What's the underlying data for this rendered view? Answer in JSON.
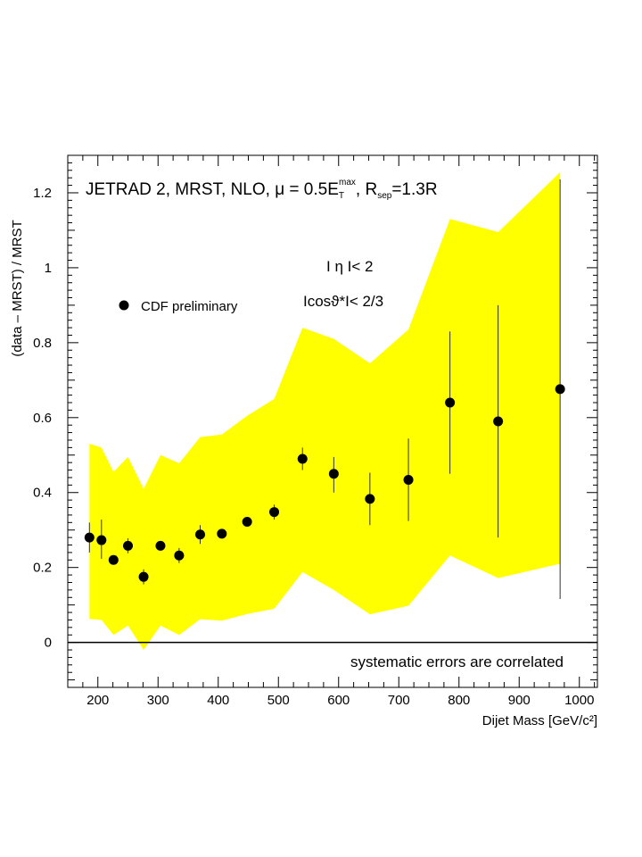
{
  "chart_data": {
    "type": "scatter",
    "title": "",
    "xlabel": "Dijet Mass [GeV/c²]",
    "ylabel": "(data – MRST) / MRST",
    "xlim": [
      150,
      1030
    ],
    "ylim": [
      -0.12,
      1.3
    ],
    "xticks": [
      200,
      300,
      400,
      500,
      600,
      700,
      800,
      900,
      1000
    ],
    "yticks": [
      0,
      0.2,
      0.4,
      0.6,
      0.8,
      1,
      1.2
    ],
    "ytick_labels": [
      "0",
      "0.2",
      "0.4",
      "0.6",
      "0.8",
      "1",
      "1.2"
    ],
    "grid": false,
    "zero_line": 0,
    "series": [
      {
        "name": "CDF preliminary",
        "x": [
          186,
          206,
          226,
          250,
          276,
          304,
          335,
          370,
          406,
          448,
          493,
          540,
          592,
          652,
          716,
          785,
          865,
          968
        ],
        "y": [
          0.28,
          0.273,
          0.22,
          0.258,
          0.175,
          0.258,
          0.232,
          0.288,
          0.29,
          0.322,
          0.348,
          0.49,
          0.45,
          0.383,
          0.434,
          0.64,
          0.59,
          0.676
        ],
        "err_low": [
          0.04,
          0.05,
          0.01,
          0.02,
          0.02,
          0.01,
          0.02,
          0.025,
          0.01,
          0.01,
          0.02,
          0.03,
          0.05,
          0.07,
          0.11,
          0.19,
          0.31,
          0.56
        ],
        "err_high": [
          0.04,
          0.055,
          0.01,
          0.02,
          0.02,
          0.01,
          0.02,
          0.025,
          0.01,
          0.01,
          0.02,
          0.03,
          0.045,
          0.07,
          0.11,
          0.19,
          0.31,
          0.56
        ]
      }
    ],
    "band": {
      "color": "#ffff00",
      "x": [
        186,
        206,
        226,
        250,
        276,
        304,
        335,
        370,
        406,
        448,
        493,
        540,
        592,
        652,
        716,
        785,
        865,
        968
      ],
      "upper": [
        0.53,
        0.52,
        0.455,
        0.495,
        0.41,
        0.5,
        0.478,
        0.548,
        0.555,
        0.605,
        0.65,
        0.84,
        0.81,
        0.745,
        0.835,
        1.13,
        1.095,
        1.255
      ],
      "lower": [
        0.063,
        0.06,
        0.02,
        0.045,
        -0.02,
        0.045,
        0.02,
        0.062,
        0.058,
        0.076,
        0.09,
        0.188,
        0.14,
        0.075,
        0.098,
        0.232,
        0.172,
        0.21
      ]
    },
    "annotations": {
      "header": "JETRAD 2, MRST, NLO, μ = 0.5E",
      "header_sub": "T",
      "header_sup": "max",
      "header_mid": ", R",
      "header_mid_sub": "sep",
      "header_end": "=1.3R",
      "eta_cut": "I η I< 2",
      "cos_cut": "Icosϑ*I< 2/3",
      "legend_label": "CDF preliminary",
      "note": "systematic errors are correlated"
    }
  }
}
